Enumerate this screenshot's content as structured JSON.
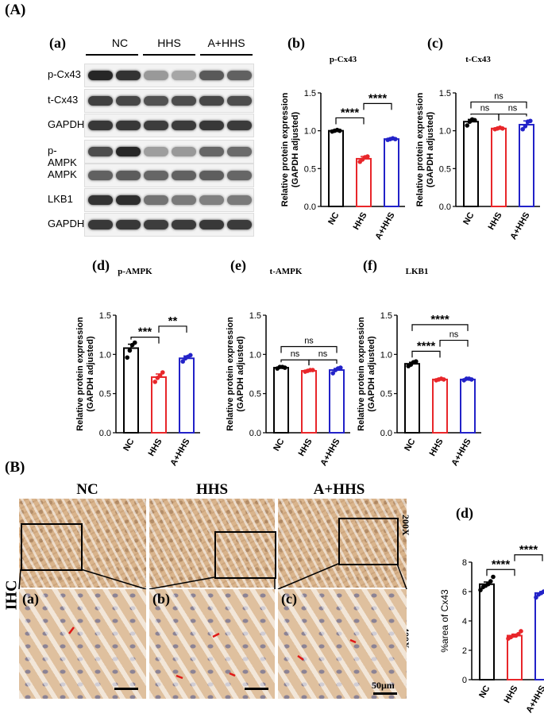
{
  "labels": {
    "A": "(A)",
    "B": "(B)",
    "a": "(a)",
    "b": "(b)",
    "c": "(c)",
    "d": "(d)",
    "e": "(e)",
    "f": "(f)",
    "Bd": "(d)",
    "ihc_a": "(a)",
    "ihc_b": "(b)",
    "ihc_c": "(c)"
  },
  "blot": {
    "groups": [
      "NC",
      "HHS",
      "A+HHS"
    ],
    "rows": [
      "p-Cx43",
      "t-Cx43",
      "GAPDH",
      "p-AMPK",
      "AMPK",
      "LKB1",
      "GAPDH"
    ],
    "band_intensity": [
      [
        0.85,
        0.8,
        0.4,
        0.35,
        0.65,
        0.62
      ],
      [
        0.75,
        0.72,
        0.68,
        0.7,
        0.72,
        0.7
      ],
      [
        0.78,
        0.78,
        0.76,
        0.77,
        0.78,
        0.77
      ],
      [
        0.7,
        0.85,
        0.38,
        0.4,
        0.6,
        0.58
      ],
      [
        0.62,
        0.64,
        0.6,
        0.62,
        0.63,
        0.6
      ],
      [
        0.8,
        0.82,
        0.55,
        0.52,
        0.5,
        0.52
      ],
      [
        0.78,
        0.78,
        0.76,
        0.77,
        0.78,
        0.77
      ]
    ]
  },
  "ihc": {
    "groups": [
      "NC",
      "HHS",
      "A+HHS"
    ],
    "row_label": "IHC",
    "mag_low": "200X",
    "mag_high": "400X",
    "scale_label": "50μm"
  },
  "colors": {
    "NC": "#000000",
    "HHS": "#e8262a",
    "A+HHS": "#2222c8"
  },
  "chart_data": [
    {
      "id": "b",
      "type": "bar",
      "title": "p-Cx43",
      "ylabel": "Relative protein expression (GAPDH adjusted)",
      "categories": [
        "NC",
        "HHS",
        "A+HHS"
      ],
      "values": [
        1.0,
        0.63,
        0.89
      ],
      "errors": [
        0.01,
        0.03,
        0.01
      ],
      "points": [
        [
          0.99,
          1.0,
          1.01,
          1.0
        ],
        [
          0.59,
          0.62,
          0.65,
          0.66
        ],
        [
          0.88,
          0.89,
          0.9,
          0.89
        ]
      ],
      "ylim": [
        0,
        1.5
      ],
      "yticks": [
        0.0,
        0.5,
        1.0,
        1.5
      ],
      "ytick_labels": [
        "0.0",
        "0.5",
        "1.0",
        "1.5"
      ],
      "annotations": [
        {
          "from": 0,
          "to": 1,
          "text": "****",
          "y": 1.17
        },
        {
          "from": 1,
          "to": 2,
          "text": "****",
          "y": 1.36
        }
      ]
    },
    {
      "id": "c",
      "type": "bar",
      "title": "t-Cx43",
      "ylabel": "Relative protein expression (GAPDH adjusted)",
      "categories": [
        "NC",
        "HHS",
        "A+HHS"
      ],
      "values": [
        1.12,
        1.03,
        1.08
      ],
      "errors": [
        0.03,
        0.01,
        0.05
      ],
      "points": [
        [
          1.07,
          1.12,
          1.15,
          1.14
        ],
        [
          1.02,
          1.03,
          1.04,
          1.03
        ],
        [
          1.02,
          1.06,
          1.12,
          1.13
        ]
      ],
      "ylim": [
        0,
        1.5
      ],
      "yticks": [
        0.0,
        0.5,
        1.0,
        1.5
      ],
      "ytick_labels": [
        "0.0",
        "0.5",
        "1.0",
        "1.5"
      ],
      "annotations": [
        {
          "from": 0,
          "to": 1,
          "text": "ns",
          "y": 1.22
        },
        {
          "from": 1,
          "to": 2,
          "text": "ns",
          "y": 1.22
        },
        {
          "from": 0,
          "to": 2,
          "text": "ns",
          "y": 1.38
        }
      ]
    },
    {
      "id": "d",
      "type": "bar",
      "title": "p-AMPK",
      "ylabel": "Relative protein expression (GAPDH adjusted)",
      "categories": [
        "NC",
        "HHS",
        "A+HHS"
      ],
      "values": [
        1.08,
        0.71,
        0.95
      ],
      "errors": [
        0.05,
        0.04,
        0.03
      ],
      "points": [
        [
          0.96,
          1.05,
          1.12,
          1.15
        ],
        [
          0.65,
          0.7,
          0.73,
          0.77
        ],
        [
          0.91,
          0.95,
          0.97,
          0.99
        ]
      ],
      "ylim": [
        0,
        1.5
      ],
      "yticks": [
        0.0,
        0.5,
        1.0,
        1.5
      ],
      "ytick_labels": [
        "0.0",
        "0.5",
        "1.0",
        "1.5"
      ],
      "annotations": [
        {
          "from": 0,
          "to": 1,
          "text": "***",
          "y": 1.22
        },
        {
          "from": 1,
          "to": 2,
          "text": "**",
          "y": 1.36
        }
      ]
    },
    {
      "id": "e",
      "type": "bar",
      "title": "t-AMPK",
      "ylabel": "Relative protein expression (GAPDH adjusted)",
      "categories": [
        "NC",
        "HHS",
        "A+HHS"
      ],
      "values": [
        0.83,
        0.79,
        0.8
      ],
      "errors": [
        0.01,
        0.01,
        0.02
      ],
      "points": [
        [
          0.82,
          0.84,
          0.84,
          0.83
        ],
        [
          0.78,
          0.79,
          0.8,
          0.8
        ],
        [
          0.76,
          0.8,
          0.82,
          0.83
        ]
      ],
      "ylim": [
        0,
        1.5
      ],
      "yticks": [
        0.0,
        0.5,
        1.0,
        1.5
      ],
      "ytick_labels": [
        "0.0",
        "0.5",
        "1.0",
        "1.5"
      ],
      "annotations": [
        {
          "from": 0,
          "to": 1,
          "text": "ns",
          "y": 0.93
        },
        {
          "from": 1,
          "to": 2,
          "text": "ns",
          "y": 0.93
        },
        {
          "from": 0,
          "to": 2,
          "text": "ns",
          "y": 1.1
        }
      ]
    },
    {
      "id": "f",
      "type": "bar",
      "title": "LKB1",
      "ylabel": "Relative protein expression (GAPDH adjusted)",
      "categories": [
        "NC",
        "HHS",
        "A+HHS"
      ],
      "values": [
        0.88,
        0.68,
        0.68
      ],
      "errors": [
        0.02,
        0.01,
        0.01
      ],
      "points": [
        [
          0.85,
          0.87,
          0.9,
          0.91
        ],
        [
          0.67,
          0.68,
          0.69,
          0.68
        ],
        [
          0.67,
          0.69,
          0.69,
          0.68
        ]
      ],
      "ylim": [
        0,
        1.5
      ],
      "yticks": [
        0.0,
        0.5,
        1.0,
        1.5
      ],
      "ytick_labels": [
        "0.0",
        "0.5",
        "1.0",
        "1.5"
      ],
      "annotations": [
        {
          "from": 0,
          "to": 1,
          "text": "****",
          "y": 1.04
        },
        {
          "from": 1,
          "to": 2,
          "text": "ns",
          "y": 1.18
        },
        {
          "from": 0,
          "to": 2,
          "text": "****",
          "y": 1.38
        }
      ]
    },
    {
      "id": "Bd",
      "type": "bar",
      "title": "",
      "ylabel": "%area of Cx43",
      "categories": [
        "NC",
        "HHS",
        "A+HHS"
      ],
      "values": [
        6.5,
        3.0,
        5.9
      ],
      "errors": [
        0.15,
        0.1,
        0.1
      ],
      "points": [
        [
          6.1,
          6.3,
          6.4,
          6.5,
          6.7,
          7.0
        ],
        [
          2.8,
          2.9,
          3.0,
          3.0,
          3.1,
          3.3
        ],
        [
          5.6,
          5.8,
          5.9,
          6.0,
          6.0,
          6.2
        ]
      ],
      "ylim": [
        0,
        8
      ],
      "yticks": [
        0,
        2,
        4,
        6,
        8
      ],
      "ytick_labels": [
        "0",
        "2",
        "4",
        "6",
        "8"
      ],
      "annotations": [
        {
          "from": 0,
          "to": 1,
          "text": "****",
          "y": 7.5
        },
        {
          "from": 1,
          "to": 2,
          "text": "****",
          "y": 8.5
        }
      ]
    }
  ]
}
